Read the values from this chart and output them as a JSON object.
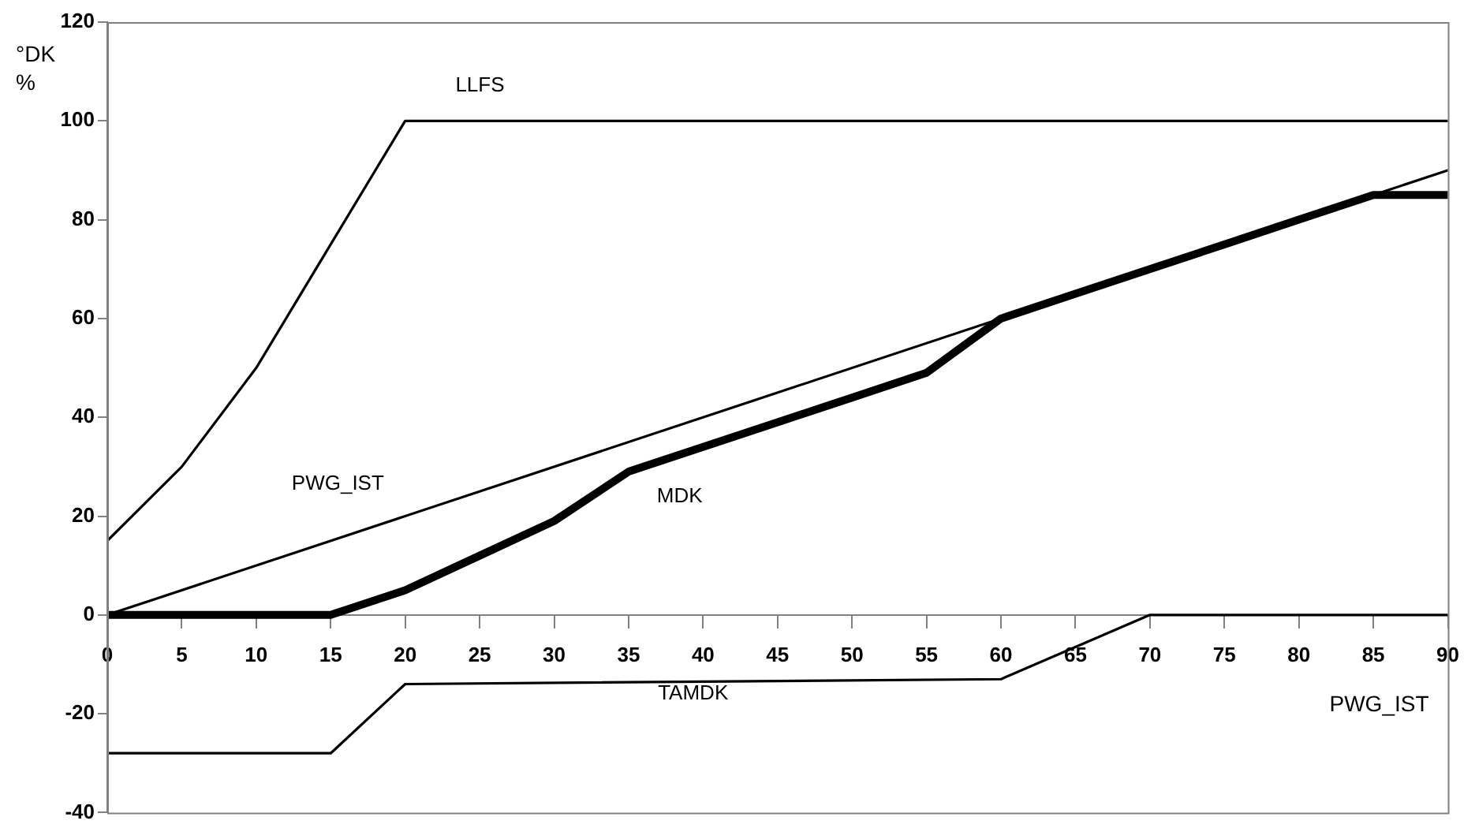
{
  "chart_data": {
    "type": "line",
    "xlabel": "PWG_IST",
    "ylabel": "°DK %",
    "xlim": [
      0,
      90
    ],
    "xticks": [
      0,
      5,
      10,
      15,
      20,
      25,
      30,
      35,
      40,
      45,
      50,
      55,
      60,
      65,
      70,
      75,
      80,
      85,
      90
    ],
    "ylim": [
      -40,
      120
    ],
    "yticks": [
      -40,
      -20,
      0,
      20,
      40,
      60,
      80,
      100,
      120
    ],
    "grid": false,
    "legend": false,
    "marker": "none",
    "line_style": "solid",
    "series": [
      {
        "name": "LLFS",
        "color": "#000000",
        "x": [
          0,
          5,
          10,
          15,
          20,
          90
        ],
        "values": [
          15,
          30,
          50,
          75,
          100,
          100
        ]
      },
      {
        "name": "PWG_IST",
        "color": "#000000",
        "x": [
          0,
          90
        ],
        "values": [
          0,
          90
        ]
      },
      {
        "name": "MDK",
        "color": "#000000",
        "x": [
          0,
          15,
          20,
          25,
          30,
          35,
          40,
          45,
          50,
          55,
          60,
          65,
          70,
          75,
          80,
          85,
          90
        ],
        "values": [
          0,
          0,
          5,
          12,
          19,
          29,
          34,
          39,
          44,
          49,
          60,
          65,
          70,
          75,
          80,
          85,
          85
        ]
      },
      {
        "name": "TAMDK",
        "color": "#000000",
        "x": [
          0,
          15,
          20,
          60,
          70,
          90
        ],
        "values": [
          -28,
          -28,
          -14,
          -13,
          0,
          0
        ]
      }
    ]
  }
}
